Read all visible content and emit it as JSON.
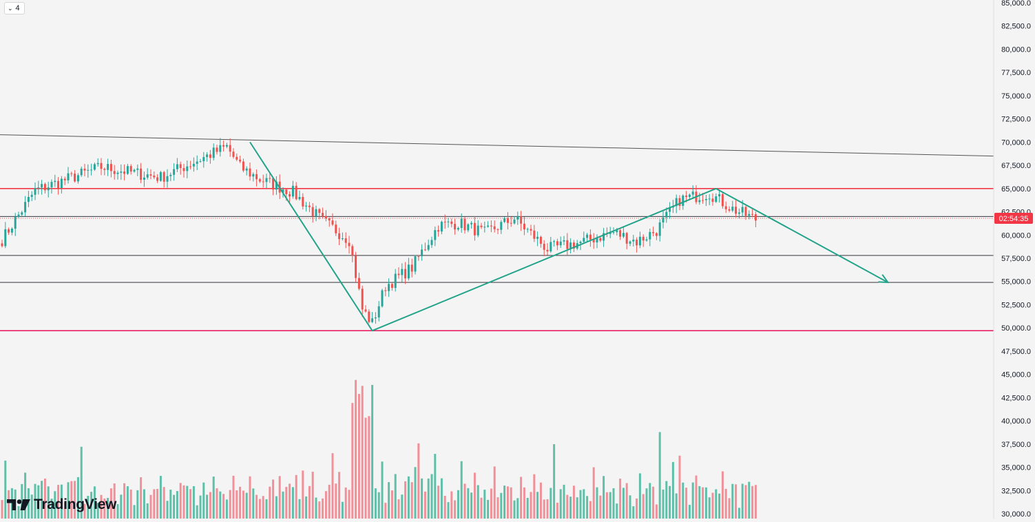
{
  "ui": {
    "collapse_count": "4",
    "countdown_label": "02:54:35",
    "logo_text": "TradingView",
    "colors": {
      "up": "#26a69a",
      "down": "#ef5350",
      "up_vol": "#5fbfa8",
      "down_vol": "#f0919a",
      "resistance": "#f23645",
      "support": "#131722",
      "bottom": "#e91e63",
      "pattern": "#22a38a",
      "background": "#f4f4f4"
    },
    "icons": [
      "chevron-down-icon",
      "tradingview-logo-icon"
    ]
  },
  "chart_data": {
    "type": "candlestick",
    "title": "",
    "xlabel": "",
    "ylabel": "",
    "ylim": [
      30000,
      85000
    ],
    "y_ticks": [
      "85,000.0",
      "82,500.0",
      "80,000.0",
      "77,500.0",
      "75,000.0",
      "72,500.0",
      "70,000.0",
      "67,500.0",
      "65,000.0",
      "62,500.0",
      "60,000.0",
      "57,500.0",
      "55,000.0",
      "52,500.0",
      "50,000.0",
      "47,500.0",
      "45,000.0",
      "42,500.0",
      "40,000.0",
      "37,500.0",
      "35,000.0",
      "32,500.0",
      "30,000.0"
    ],
    "current_price": 61800,
    "grid": false,
    "horizontal_lines": [
      {
        "price": 65000,
        "role": "resistance"
      },
      {
        "price": 62000,
        "role": "level"
      },
      {
        "price": 57800,
        "role": "support"
      },
      {
        "price": 54900,
        "role": "support"
      },
      {
        "price": 49700,
        "role": "bottom"
      }
    ],
    "trendline": {
      "from": 70800,
      "to": 68500
    },
    "anchors": [
      {
        "bar": 0,
        "price": 59500
      },
      {
        "bar": 10,
        "price": 64800
      },
      {
        "bar": 30,
        "price": 67300
      },
      {
        "bar": 48,
        "price": 66200
      },
      {
        "bar": 68,
        "price": 69500
      },
      {
        "bar": 72,
        "price": 67300
      },
      {
        "bar": 78,
        "price": 66000
      },
      {
        "bar": 88,
        "price": 64600
      },
      {
        "bar": 97,
        "price": 61500
      },
      {
        "bar": 105,
        "price": 59500
      },
      {
        "bar": 109,
        "price": 52000
      },
      {
        "bar": 112,
        "price": 50500
      },
      {
        "bar": 116,
        "price": 54500
      },
      {
        "bar": 124,
        "price": 56500
      },
      {
        "bar": 132,
        "price": 61000
      },
      {
        "bar": 138,
        "price": 61300
      },
      {
        "bar": 146,
        "price": 60200
      },
      {
        "bar": 155,
        "price": 61800
      },
      {
        "bar": 165,
        "price": 58500
      },
      {
        "bar": 175,
        "price": 59200
      },
      {
        "bar": 185,
        "price": 60300
      },
      {
        "bar": 192,
        "price": 59300
      },
      {
        "bar": 198,
        "price": 60500
      },
      {
        "bar": 205,
        "price": 63800
      },
      {
        "bar": 214,
        "price": 64500
      },
      {
        "bar": 221,
        "price": 62800
      },
      {
        "bar": 228,
        "price": 61700
      }
    ],
    "pattern_points": [
      {
        "bar": 75,
        "price": 70000
      },
      {
        "bar": 112,
        "price": 49700
      },
      {
        "bar": 216,
        "price": 65000
      },
      {
        "bar": 268,
        "price": 54900
      }
    ],
    "volume_ylim": [
      30000,
      45000
    ]
  }
}
